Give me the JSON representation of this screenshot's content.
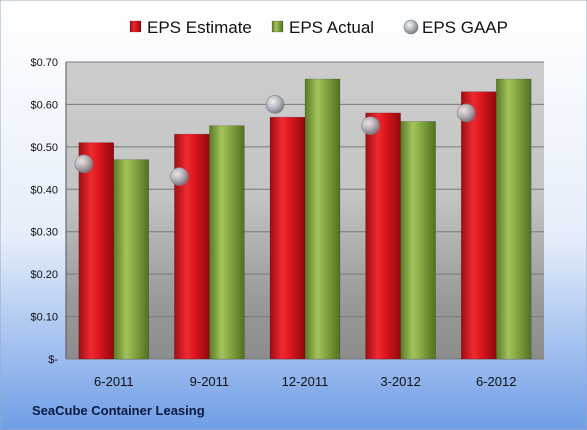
{
  "chart_data": {
    "type": "bar",
    "categories": [
      "6-2011",
      "9-2011",
      "12-2011",
      "3-2012",
      "6-2012"
    ],
    "series": [
      {
        "name": "EPS Estimate",
        "kind": "bar",
        "values": [
          0.51,
          0.53,
          0.57,
          0.58,
          0.63
        ],
        "color": "#d8141c"
      },
      {
        "name": "EPS Actual",
        "kind": "bar",
        "values": [
          0.47,
          0.55,
          0.66,
          0.56,
          0.66
        ],
        "color": "#7fa13c"
      },
      {
        "name": "EPS GAAP",
        "kind": "marker",
        "values": [
          0.46,
          0.43,
          0.6,
          0.55,
          0.58
        ],
        "color": "#b8bcc2"
      }
    ],
    "ylim": [
      0,
      0.7
    ],
    "yticks": [
      0,
      0.1,
      0.2,
      0.3,
      0.4,
      0.5,
      0.6,
      0.7
    ],
    "ytick_labels": [
      "$-",
      "$0.10",
      "$0.20",
      "$0.30",
      "$0.40",
      "$0.50",
      "$0.60",
      "$0.70"
    ],
    "grid": true,
    "legend_position": "top",
    "footer_text": "SeaCube Container Leasing"
  }
}
